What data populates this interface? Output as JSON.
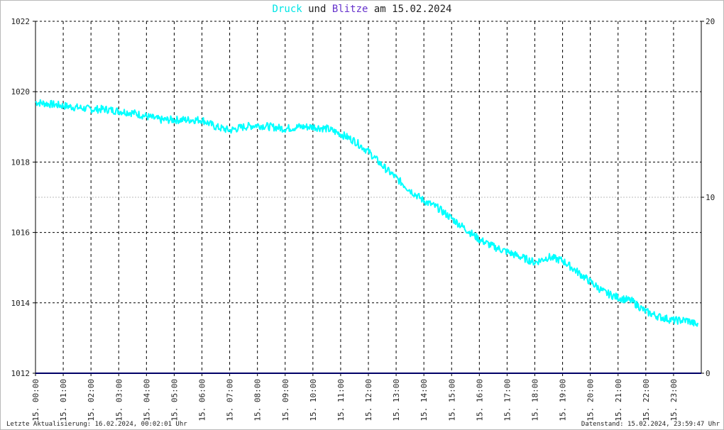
{
  "title": {
    "druck_word": "Druck",
    "und_word": "und",
    "blitze_word": "Blitze",
    "am_word": "am",
    "date": "15.02.2024"
  },
  "colors": {
    "druck": "#00ffff",
    "druck_title": "#00e5e5",
    "blitze": "#6633cc",
    "baseline": "#000066",
    "grid": "#000000"
  },
  "footer": {
    "left": "Letzte Aktualisierung: 16.02.2024, 00:02:01 Uhr",
    "right": "Datenstand: 15.02.2024, 23:59:47 Uhr"
  },
  "chart_data": {
    "type": "line",
    "title": "Druck und Blitze am 15.02.2024",
    "grid": true,
    "x_ticks": [
      "15. 00:00",
      "15. 01:00",
      "15. 02:00",
      "15. 03:00",
      "15. 04:00",
      "15. 05:00",
      "15. 06:00",
      "15. 07:00",
      "15. 08:00",
      "15. 09:00",
      "15. 10:00",
      "15. 11:00",
      "15. 12:00",
      "15. 13:00",
      "15. 14:00",
      "15. 15:00",
      "15. 16:00",
      "15. 17:00",
      "15. 18:00",
      "15. 19:00",
      "15. 20:00",
      "15. 21:00",
      "15. 22:00",
      "15. 23:00"
    ],
    "y_left": {
      "ticks": [
        1012,
        1014,
        1016,
        1018,
        1020,
        1022
      ],
      "ylim": [
        1012,
        1022
      ]
    },
    "y_right": {
      "ticks": [
        0,
        10,
        20
      ],
      "ylim": [
        0,
        20
      ]
    },
    "series": [
      {
        "name": "Druck",
        "axis": "left",
        "x_hours": [
          0,
          0.5,
          1,
          1.5,
          2,
          2.5,
          3,
          3.5,
          4,
          4.5,
          5,
          5.5,
          6,
          6.5,
          7,
          7.5,
          8,
          8.5,
          9,
          9.5,
          10,
          10.5,
          11,
          11.5,
          12,
          12.5,
          13,
          13.5,
          14,
          14.5,
          15,
          15.5,
          16,
          16.5,
          17,
          17.5,
          18,
          18.5,
          19,
          19.5,
          20,
          20.5,
          21,
          21.5,
          22,
          22.5,
          23,
          23.5,
          23.9
        ],
        "values": [
          1019.7,
          1019.65,
          1019.6,
          1019.55,
          1019.5,
          1019.5,
          1019.45,
          1019.4,
          1019.3,
          1019.2,
          1019.2,
          1019.2,
          1019.2,
          1019.0,
          1018.9,
          1019.0,
          1019.05,
          1019.0,
          1018.95,
          1019.0,
          1019.0,
          1018.95,
          1018.8,
          1018.6,
          1018.3,
          1017.9,
          1017.55,
          1017.2,
          1016.9,
          1016.7,
          1016.4,
          1016.1,
          1015.8,
          1015.6,
          1015.45,
          1015.3,
          1015.15,
          1015.3,
          1015.2,
          1014.9,
          1014.6,
          1014.3,
          1014.15,
          1014.05,
          1013.75,
          1013.6,
          1013.5,
          1013.5,
          1013.35
        ]
      },
      {
        "name": "Blitze",
        "axis": "right",
        "x_hours": [
          0,
          24
        ],
        "values": [
          0,
          0
        ]
      }
    ]
  }
}
